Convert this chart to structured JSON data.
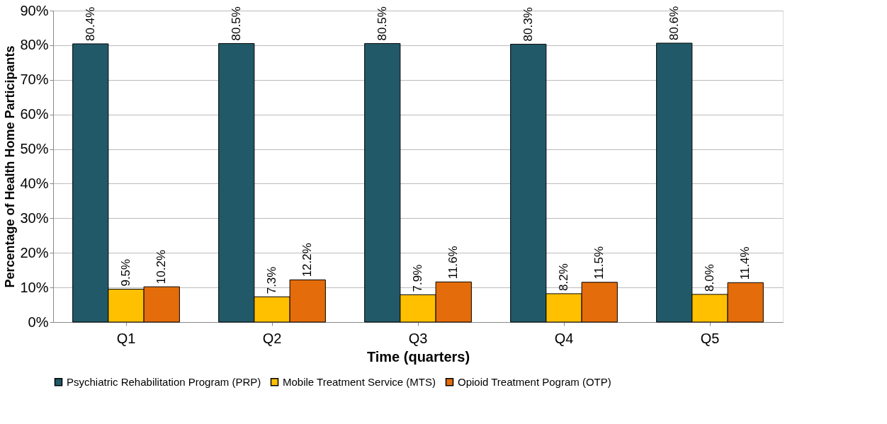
{
  "chart_data": {
    "type": "bar",
    "xlabel": "Time (quarters)",
    "ylabel": "Percentage of Health Home Participants",
    "categories": [
      "Q1",
      "Q2",
      "Q3",
      "Q4",
      "Q5"
    ],
    "series": [
      {
        "name": "Psychiatric Rehabilitation Program (PRP)",
        "color": "#215968",
        "values": [
          80.4,
          80.5,
          80.5,
          80.3,
          80.6
        ],
        "value_labels": [
          "80.4%",
          "80.5%",
          "80.5%",
          "80.3%",
          "80.6%"
        ]
      },
      {
        "name": "Mobile Treatment Service (MTS)",
        "color": "#ffc000",
        "values": [
          9.5,
          7.3,
          7.9,
          8.2,
          8.0
        ],
        "value_labels": [
          "9.5%",
          "7.3%",
          "7.9%",
          "8.2%",
          "8.0%"
        ]
      },
      {
        "name": "Opioid Treatment Pogram (OTP)",
        "color": "#e46c0a",
        "values": [
          10.2,
          12.2,
          11.6,
          11.5,
          11.4
        ],
        "value_labels": [
          "10.2%",
          "12.2%",
          "11.6%",
          "11.5%",
          "11.4%"
        ]
      }
    ],
    "ylim": [
      0,
      90
    ],
    "yticks": [
      {
        "value": 0,
        "label": "0%"
      },
      {
        "value": 10,
        "label": "10%"
      },
      {
        "value": 20,
        "label": "20%"
      },
      {
        "value": 30,
        "label": "30%"
      },
      {
        "value": 40,
        "label": "40%"
      },
      {
        "value": 50,
        "label": "50%"
      },
      {
        "value": 60,
        "label": "60%"
      },
      {
        "value": 70,
        "label": "70%"
      },
      {
        "value": 80,
        "label": "80%"
      },
      {
        "value": 90,
        "label": "90%"
      }
    ],
    "grid": "y",
    "legend": "bottom"
  }
}
